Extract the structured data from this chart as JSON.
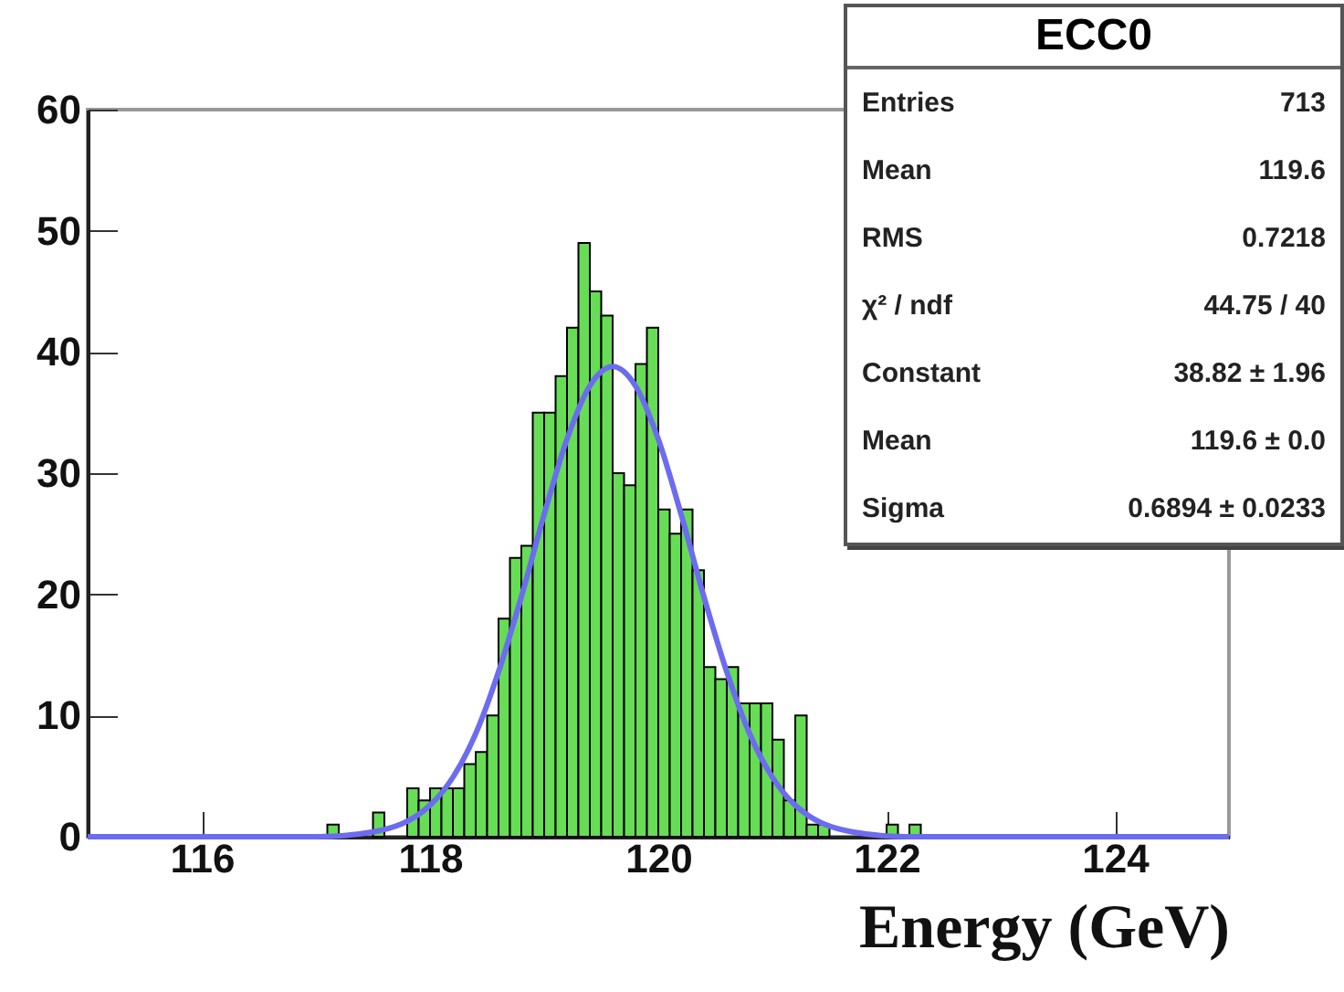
{
  "chart_data": {
    "type": "histogram",
    "title": "ECC0",
    "xlabel": "Energy (GeV)",
    "bins": [
      115,
      115.1,
      115.2,
      115.3,
      115.4,
      115.5,
      115.6,
      115.7,
      115.8,
      115.9,
      116,
      116.1,
      116.2,
      116.3,
      116.4,
      116.5,
      116.6,
      116.7,
      116.8,
      116.9,
      117,
      117.1,
      117.2,
      117.3,
      117.4,
      117.5,
      117.6,
      117.7,
      117.8,
      117.9,
      118,
      118.1,
      118.2,
      118.3,
      118.4,
      118.5,
      118.6,
      118.7,
      118.8,
      118.9,
      119,
      119.1,
      119.2,
      119.3,
      119.4,
      119.5,
      119.6,
      119.7,
      119.8,
      119.9,
      120,
      120.1,
      120.2,
      120.3,
      120.4,
      120.5,
      120.6,
      120.7,
      120.8,
      120.9,
      121,
      121.1,
      121.2,
      121.3,
      121.4,
      121.5,
      121.6,
      121.7,
      121.8,
      121.9,
      122,
      122.1,
      122.2,
      122.3,
      122.4,
      122.5,
      122.6,
      122.7,
      122.8,
      122.9,
      123,
      123.1,
      123.2,
      123.3,
      123.4,
      123.5,
      123.6,
      123.7,
      123.8,
      123.9,
      124,
      124.1,
      124.2,
      124.3,
      124.4,
      124.5,
      124.6,
      124.7,
      124.8,
      124.9,
      125
    ],
    "values": [
      0,
      0,
      0,
      0,
      0,
      0,
      0,
      0,
      0,
      0,
      0,
      0,
      0,
      0,
      0,
      0,
      0,
      0,
      0,
      0,
      0,
      1,
      0,
      0,
      0,
      2,
      0,
      0,
      4,
      3,
      4,
      4,
      4,
      6,
      7,
      10,
      18,
      23,
      24,
      35,
      35,
      38,
      42,
      49,
      45,
      43,
      30,
      29,
      39,
      42,
      27,
      25,
      27,
      22,
      14,
      13,
      14,
      11,
      11,
      11,
      8,
      3,
      10,
      1,
      1,
      0,
      0,
      0,
      0,
      0,
      1,
      0,
      1,
      0,
      0,
      0,
      0,
      0,
      0,
      0,
      0,
      0,
      0,
      0,
      0,
      0,
      0,
      0,
      0,
      0,
      0,
      0,
      0,
      0,
      0,
      0,
      0,
      0,
      0,
      0
    ],
    "color": "#66dd55",
    "series": [
      {
        "type": "line",
        "color": "#6c6cf0",
        "x": [
          115,
          116,
          117,
          117.5,
          118,
          118.2,
          118.4,
          118.6,
          118.8,
          119,
          119.2,
          119.4,
          119.6,
          119.8,
          120,
          120.2,
          120.4,
          120.6,
          120.8,
          121,
          121.2,
          121.7,
          122.2,
          123,
          125
        ],
        "values": [
          0,
          0,
          0,
          0.4,
          2.6,
          4.9,
          8.5,
          13.6,
          19.8,
          26.6,
          32.8,
          37.2,
          38.8,
          37.2,
          32.8,
          26.6,
          19.8,
          13.6,
          8.5,
          4.9,
          2.6,
          0.4,
          0,
          0,
          0
        ]
      }
    ],
    "xlim": [
      115,
      125
    ],
    "ylim": [
      0,
      60
    ],
    "xticks": [
      116,
      118,
      120,
      122,
      124
    ],
    "yticks": [
      0,
      10,
      20,
      30,
      40,
      50,
      60
    ],
    "grid": false,
    "annotations": [
      "Entries",
      "713",
      "Mean",
      "119.6",
      "RMS",
      "0.7218",
      "χ² / ndf",
      "44.75 / 40",
      "Constant",
      "38.82 ± 1.96",
      "Mean",
      "119.6 ± 0.0",
      "Sigma",
      "0.6894 ± 0.0233"
    ]
  }
}
